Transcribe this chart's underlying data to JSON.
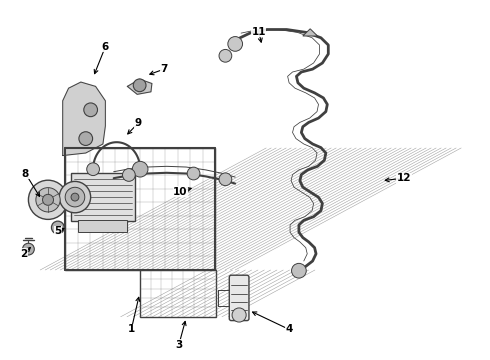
{
  "bg_color": "#ffffff",
  "lc": "#404040",
  "lc2": "#555555",
  "figsize": [
    4.9,
    3.6
  ],
  "dpi": 100,
  "labels": {
    "1": [
      0.268,
      0.085,
      0.285,
      0.185
    ],
    "2": [
      0.048,
      0.295,
      0.068,
      0.32
    ],
    "3": [
      0.365,
      0.042,
      0.38,
      0.118
    ],
    "4": [
      0.59,
      0.085,
      0.508,
      0.138
    ],
    "5": [
      0.118,
      0.358,
      0.138,
      0.37
    ],
    "6": [
      0.215,
      0.87,
      0.19,
      0.785
    ],
    "7": [
      0.335,
      0.808,
      0.298,
      0.79
    ],
    "8": [
      0.052,
      0.518,
      0.085,
      0.445
    ],
    "9": [
      0.282,
      0.658,
      0.255,
      0.62
    ],
    "10": [
      0.368,
      0.468,
      0.398,
      0.48
    ],
    "11": [
      0.528,
      0.912,
      0.535,
      0.872
    ],
    "12": [
      0.825,
      0.505,
      0.778,
      0.498
    ]
  }
}
